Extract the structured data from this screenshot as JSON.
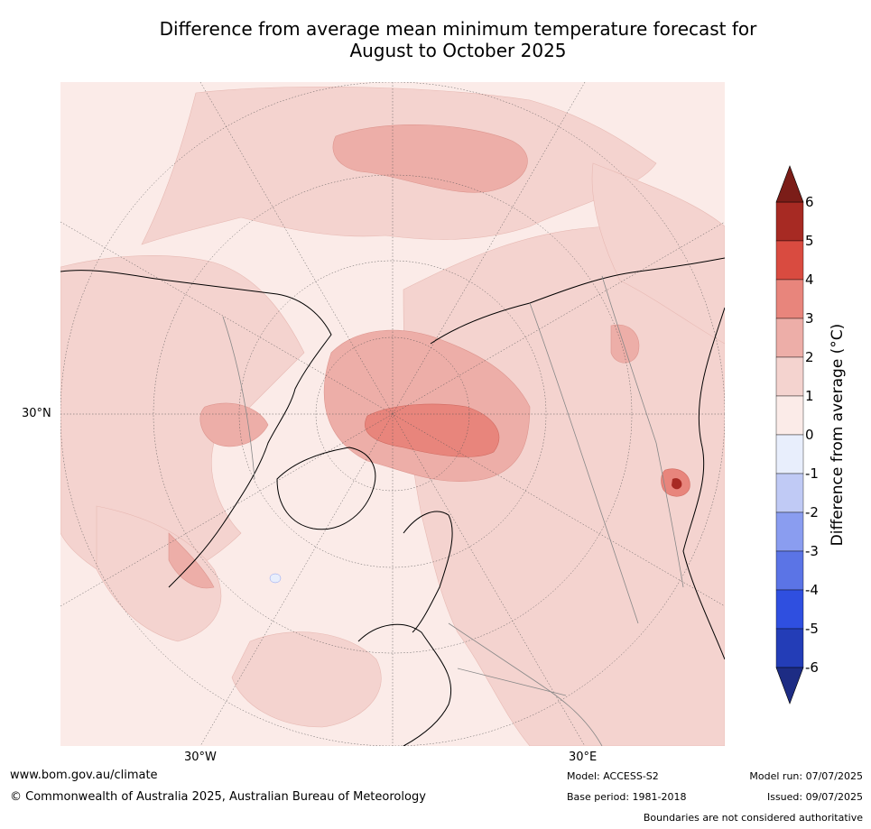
{
  "title_line1": "Difference from average mean minimum temperature forecast for",
  "title_line2": "August to October 2025",
  "map": {
    "projection": "north-polar-stereographic",
    "lon_labels": [
      "30°W",
      "30°E"
    ],
    "lat_labels": [
      "30°N"
    ],
    "ocean_color": "#fbebe8",
    "country_border_color": "#888888",
    "coastline_color": "#000000"
  },
  "colorbar": {
    "label": "Difference from average (°C)",
    "ticks": [
      "6",
      "5",
      "4",
      "3",
      "2",
      "1",
      "0",
      "-1",
      "-2",
      "-3",
      "-4",
      "-5",
      "-6"
    ],
    "over_color": "#7b1d18",
    "under_color": "#1d2c84",
    "bins": [
      {
        "range": "5 to 6",
        "color": "#a72a23"
      },
      {
        "range": "4 to 5",
        "color": "#d94b40"
      },
      {
        "range": "3 to 4",
        "color": "#e8857c"
      },
      {
        "range": "2 to 3",
        "color": "#edaea8"
      },
      {
        "range": "1 to 2",
        "color": "#f4d3cf"
      },
      {
        "range": "0 to 1",
        "color": "#fbebe8"
      },
      {
        "range": "-1 to 0",
        "color": "#e8eefc"
      },
      {
        "range": "-2 to -1",
        "color": "#c0caf5"
      },
      {
        "range": "-3 to -2",
        "color": "#8a9df0"
      },
      {
        "range": "-4 to -3",
        "color": "#5b74e6"
      },
      {
        "range": "-5 to -4",
        "color": "#2f4fe0"
      },
      {
        "range": "-6 to -5",
        "color": "#233db7"
      }
    ]
  },
  "footer": {
    "website": "www.bom.gov.au/climate",
    "copyright": "© Commonwealth of Australia 2025, Australian Bureau of Meteorology",
    "model": "Model: ACCESS-S2",
    "base_period": "Base period: 1981-2018",
    "model_run": "Model run: 07/07/2025",
    "issued": "Issued: 09/07/2025",
    "disclaimer": "Boundaries are not considered authoritative"
  }
}
